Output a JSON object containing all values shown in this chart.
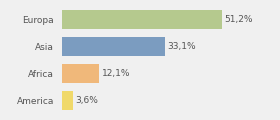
{
  "categories": [
    "Europa",
    "Asia",
    "Africa",
    "America"
  ],
  "values": [
    51.2,
    33.1,
    12.1,
    3.6
  ],
  "labels": [
    "51,2%",
    "33,1%",
    "12,1%",
    "3,6%"
  ],
  "bar_colors": [
    "#b5c98e",
    "#7b9cc0",
    "#f0b87a",
    "#f0d96a"
  ],
  "background_color": "#f0f0f0",
  "xlim": [
    0,
    68
  ],
  "label_fontsize": 6.5,
  "tick_fontsize": 6.5,
  "bar_height": 0.72
}
